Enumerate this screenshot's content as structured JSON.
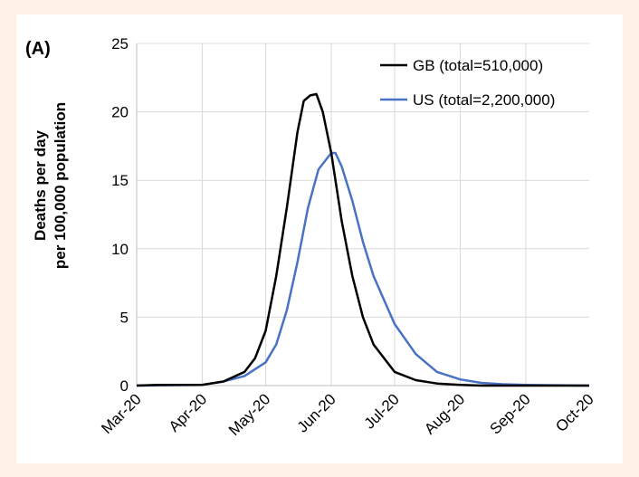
{
  "panel_label": "(A)",
  "chart_data": {
    "type": "line",
    "title": "",
    "xlabel": "",
    "ylabel": "Deaths per day per 100,000 population",
    "ylabel_lines": [
      "Deaths per day",
      "per 100,000 population"
    ],
    "x_tick_labels": [
      "Mar-20",
      "Apr-20",
      "May-20",
      "Jun-20",
      "Jul-20",
      "Aug-20",
      "Sep-20",
      "Oct-20"
    ],
    "y_tick_labels": [
      "0",
      "5",
      "10",
      "15",
      "20",
      "25"
    ],
    "ylim": [
      0,
      25
    ],
    "xlim": [
      "2020-03-01",
      "2020-10-01"
    ],
    "grid": true,
    "legend_position": "top-right",
    "series": [
      {
        "name": "GB (total=510,000)",
        "color": "#000000",
        "points": [
          [
            "2020-03-01",
            0
          ],
          [
            "2020-03-11",
            0.05
          ],
          [
            "2020-03-21",
            0.05
          ],
          [
            "2020-04-01",
            0.05
          ],
          [
            "2020-04-11",
            0.3
          ],
          [
            "2020-04-21",
            1.0
          ],
          [
            "2020-04-26",
            2.0
          ],
          [
            "2020-05-01",
            4.0
          ],
          [
            "2020-05-06",
            8.0
          ],
          [
            "2020-05-11",
            13.0
          ],
          [
            "2020-05-16",
            18.5
          ],
          [
            "2020-05-19",
            20.8
          ],
          [
            "2020-05-22",
            21.2
          ],
          [
            "2020-05-25",
            21.3
          ],
          [
            "2020-05-28",
            20.0
          ],
          [
            "2020-06-01",
            17.0
          ],
          [
            "2020-06-06",
            12.0
          ],
          [
            "2020-06-11",
            8.0
          ],
          [
            "2020-06-16",
            5.0
          ],
          [
            "2020-06-21",
            3.0
          ],
          [
            "2020-07-01",
            1.0
          ],
          [
            "2020-07-11",
            0.4
          ],
          [
            "2020-07-21",
            0.15
          ],
          [
            "2020-08-01",
            0.05
          ],
          [
            "2020-08-11",
            0
          ],
          [
            "2020-10-01",
            0
          ]
        ]
      },
      {
        "name": "US (total=2,200,000)",
        "color": "#4a72c4",
        "points": [
          [
            "2020-03-01",
            0
          ],
          [
            "2020-04-01",
            0.05
          ],
          [
            "2020-04-11",
            0.3
          ],
          [
            "2020-04-21",
            0.7
          ],
          [
            "2020-05-01",
            1.7
          ],
          [
            "2020-05-06",
            3.0
          ],
          [
            "2020-05-11",
            5.5
          ],
          [
            "2020-05-16",
            9.0
          ],
          [
            "2020-05-21",
            13.0
          ],
          [
            "2020-05-26",
            15.8
          ],
          [
            "2020-06-01",
            17.0
          ],
          [
            "2020-06-03",
            17.0
          ],
          [
            "2020-06-06",
            16.0
          ],
          [
            "2020-06-11",
            13.5
          ],
          [
            "2020-06-16",
            10.5
          ],
          [
            "2020-06-21",
            8.0
          ],
          [
            "2020-07-01",
            4.5
          ],
          [
            "2020-07-11",
            2.3
          ],
          [
            "2020-07-21",
            1.0
          ],
          [
            "2020-08-01",
            0.45
          ],
          [
            "2020-08-11",
            0.2
          ],
          [
            "2020-08-21",
            0.1
          ],
          [
            "2020-09-01",
            0.05
          ],
          [
            "2020-10-01",
            0
          ]
        ]
      }
    ]
  }
}
